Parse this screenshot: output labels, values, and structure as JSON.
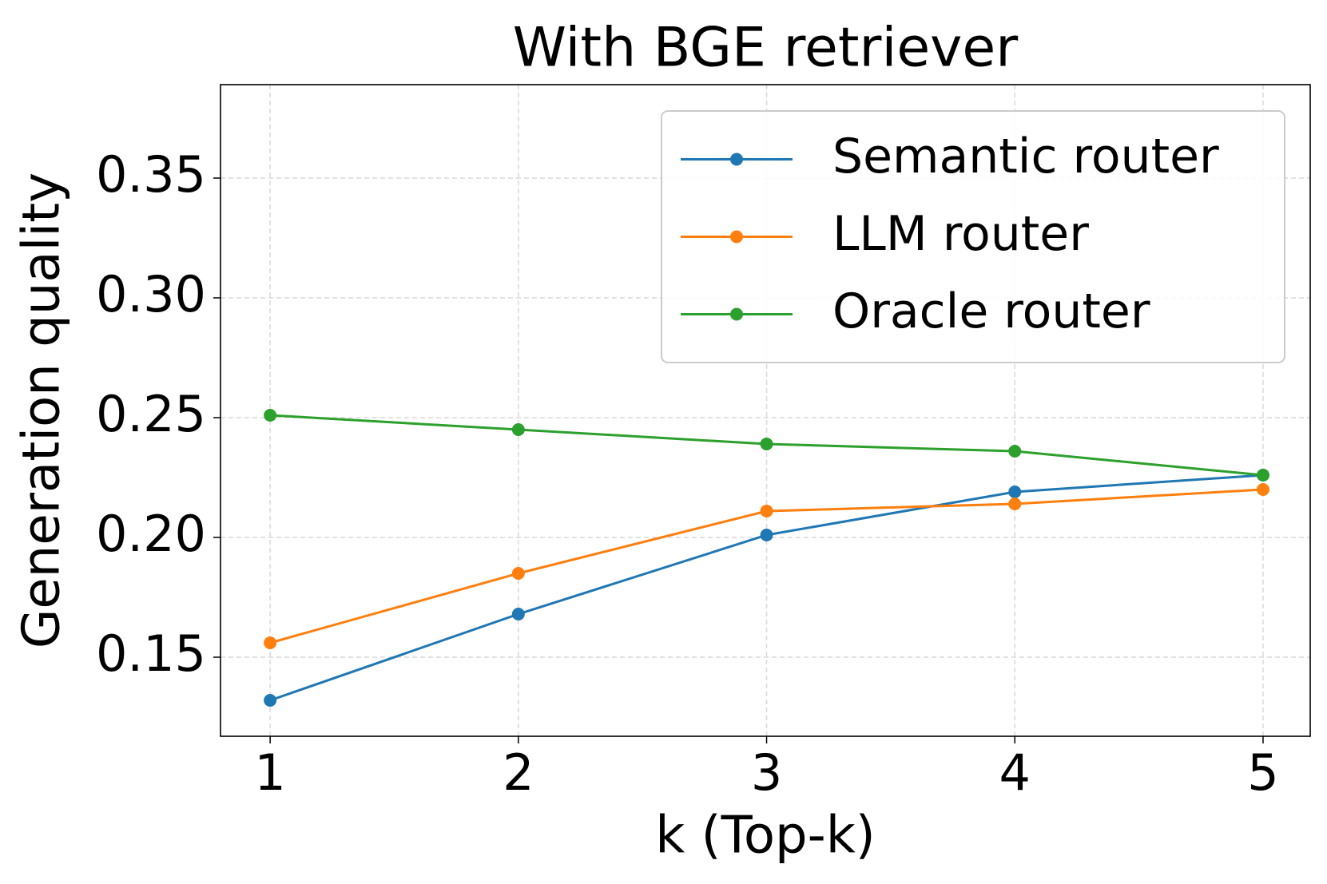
{
  "chart_data": {
    "type": "line",
    "title": "With BGE retriever",
    "x_label": "k (Top-k)",
    "y_label": "Generation quality",
    "x": [
      1,
      2,
      3,
      4,
      5
    ],
    "series": [
      {
        "name": "Semantic router",
        "color": "#1f77b4",
        "values": [
          0.132,
          0.168,
          0.201,
          0.219,
          0.226
        ]
      },
      {
        "name": "LLM router",
        "color": "#ff7f0e",
        "values": [
          0.156,
          0.185,
          0.211,
          0.214,
          0.22
        ]
      },
      {
        "name": "Oracle router",
        "color": "#2ca02c",
        "values": [
          0.251,
          0.245,
          0.239,
          0.236,
          0.226
        ]
      }
    ],
    "xlim": [
      0.8,
      5.19
    ],
    "ylim": [
      0.117,
      0.389
    ],
    "xticks": [
      1,
      2,
      3,
      4,
      5
    ],
    "yticks": [
      {
        "value": 0.15,
        "label": "0.15"
      },
      {
        "value": 0.2,
        "label": "0.20"
      },
      {
        "value": 0.25,
        "label": "0.25"
      },
      {
        "value": 0.3,
        "label": "0.30"
      },
      {
        "value": 0.35,
        "label": "0.35"
      }
    ],
    "grid": true,
    "legend": "upper right"
  }
}
